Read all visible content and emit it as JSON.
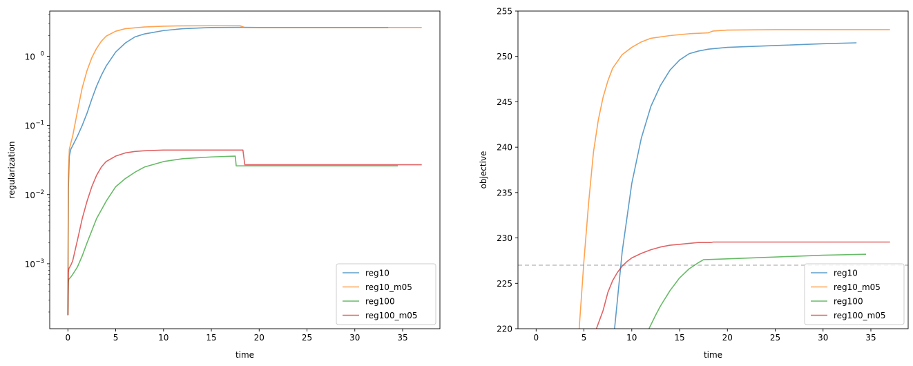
{
  "chart_data": [
    {
      "type": "line",
      "title": "",
      "xlabel": "time",
      "ylabel": "regularization",
      "yscale": "log",
      "xlim": [
        -1.9,
        38.9
      ],
      "ylim": [
        0.000115,
        4.5
      ],
      "grid": false,
      "legend_position": "lower-right",
      "x_ticks": [
        0,
        5,
        10,
        15,
        20,
        25,
        30,
        35
      ],
      "y_ticks": [
        {
          "value": 0.001,
          "mantissa": "10",
          "exp": "−3"
        },
        {
          "value": 0.01,
          "mantissa": "10",
          "exp": "−2"
        },
        {
          "value": 0.1,
          "mantissa": "10",
          "exp": "−1"
        },
        {
          "value": 1,
          "mantissa": "10",
          "exp": "0"
        }
      ],
      "series": [
        {
          "name": "reg10",
          "color": "#1f77b4",
          "x": [
            0,
            0.05,
            0.15,
            0.3,
            0.5,
            1,
            1.5,
            2,
            2.5,
            3,
            3.5,
            4,
            5,
            6,
            7,
            8,
            10,
            12,
            15,
            18,
            20,
            25,
            30,
            33.5
          ],
          "y": [
            0.00018,
            0.012,
            0.036,
            0.045,
            0.051,
            0.07,
            0.1,
            0.15,
            0.24,
            0.37,
            0.53,
            0.72,
            1.15,
            1.55,
            1.9,
            2.1,
            2.35,
            2.5,
            2.6,
            2.62,
            2.6,
            2.6,
            2.6,
            2.6
          ]
        },
        {
          "name": "reg10_m05",
          "color": "#ff7f0e",
          "x": [
            0,
            0.05,
            0.15,
            0.3,
            0.5,
            1,
            1.5,
            2,
            2.5,
            3,
            3.5,
            4,
            5,
            6,
            8,
            10,
            12,
            15,
            18,
            18.5,
            20,
            25,
            30,
            35,
            37
          ],
          "y": [
            0.00018,
            0.018,
            0.045,
            0.055,
            0.07,
            0.16,
            0.35,
            0.62,
            0.95,
            1.3,
            1.65,
            1.95,
            2.3,
            2.5,
            2.65,
            2.72,
            2.75,
            2.76,
            2.76,
            2.6,
            2.6,
            2.6,
            2.6,
            2.6,
            2.6
          ]
        },
        {
          "name": "reg100",
          "color": "#2ca02c",
          "x": [
            0,
            0.05,
            0.1,
            0.3,
            0.5,
            1,
            1.5,
            2,
            2.5,
            3,
            4,
            5,
            6,
            7,
            8,
            10,
            12,
            15,
            17.5,
            17.6,
            20,
            25,
            30,
            34.5
          ],
          "y": [
            0.00018,
            0.00055,
            0.0006,
            0.00064,
            0.0007,
            0.0009,
            0.0013,
            0.002,
            0.003,
            0.0045,
            0.008,
            0.013,
            0.017,
            0.021,
            0.025,
            0.03,
            0.033,
            0.035,
            0.036,
            0.026,
            0.026,
            0.026,
            0.026,
            0.026
          ]
        },
        {
          "name": "reg100_m05",
          "color": "#d62728",
          "x": [
            0,
            0.05,
            0.1,
            0.3,
            0.5,
            1,
            1.5,
            2,
            2.5,
            3,
            3.5,
            4,
            5,
            6,
            7,
            8,
            10,
            12,
            15,
            18.3,
            18.5,
            20,
            25,
            30,
            35,
            37
          ],
          "y": [
            0.00018,
            0.00075,
            0.00085,
            0.00095,
            0.0011,
            0.0022,
            0.0045,
            0.008,
            0.013,
            0.019,
            0.025,
            0.03,
            0.036,
            0.04,
            0.042,
            0.043,
            0.044,
            0.044,
            0.044,
            0.044,
            0.027,
            0.027,
            0.027,
            0.027,
            0.027,
            0.027
          ]
        }
      ]
    },
    {
      "type": "line",
      "title": "",
      "xlabel": "time",
      "ylabel": "objective",
      "yscale": "linear",
      "xlim": [
        -1.9,
        38.9
      ],
      "ylim": [
        220,
        255
      ],
      "grid": false,
      "legend_position": "lower-right",
      "x_ticks": [
        0,
        5,
        10,
        15,
        20,
        25,
        30,
        35
      ],
      "y_ticks": [
        220,
        225,
        230,
        235,
        240,
        245,
        250,
        255
      ],
      "reference_line": {
        "y": 227,
        "color": "#bfbfbf",
        "style": "dashed"
      },
      "series": [
        {
          "name": "reg10",
          "color": "#1f77b4",
          "x": [
            8.2,
            9,
            10,
            11,
            12,
            13,
            14,
            15,
            16,
            17,
            18,
            20,
            25,
            30,
            33.5
          ],
          "y": [
            220,
            228.5,
            236,
            241,
            244.5,
            246.8,
            248.5,
            249.6,
            250.3,
            250.6,
            250.8,
            251,
            251.2,
            251.4,
            251.5
          ]
        },
        {
          "name": "reg10_m05",
          "color": "#ff7f0e",
          "x": [
            4.5,
            5,
            5.5,
            6,
            6.5,
            7,
            7.5,
            8,
            9,
            10,
            11,
            12,
            14,
            16,
            18,
            18.5,
            20,
            25,
            30,
            35,
            37
          ],
          "y": [
            220,
            227.5,
            234,
            239.5,
            243,
            245.5,
            247.3,
            248.7,
            250.2,
            251,
            251.6,
            252,
            252.3,
            252.5,
            252.6,
            252.8,
            252.9,
            252.95,
            252.95,
            252.95,
            252.95
          ]
        },
        {
          "name": "reg100",
          "color": "#2ca02c",
          "x": [
            11.8,
            12.5,
            13,
            14,
            15,
            16,
            17,
            17.5,
            20,
            25,
            30,
            34.5
          ],
          "y": [
            220,
            221.5,
            222.5,
            224.2,
            225.6,
            226.6,
            227.3,
            227.6,
            227.7,
            227.9,
            228.1,
            228.2
          ]
        },
        {
          "name": "reg100_m05",
          "color": "#d62728",
          "x": [
            6.3,
            7,
            7.5,
            8,
            8.5,
            9,
            9.5,
            10,
            11,
            12,
            13,
            14,
            15,
            16,
            17,
            18.3,
            18.5,
            20,
            25,
            30,
            35,
            37
          ],
          "y": [
            220,
            222,
            224,
            225.3,
            226.2,
            226.9,
            227.4,
            227.8,
            228.3,
            228.7,
            229,
            229.2,
            229.3,
            229.4,
            229.5,
            229.5,
            229.55,
            229.55,
            229.55,
            229.55,
            229.55,
            229.55
          ]
        }
      ]
    }
  ]
}
